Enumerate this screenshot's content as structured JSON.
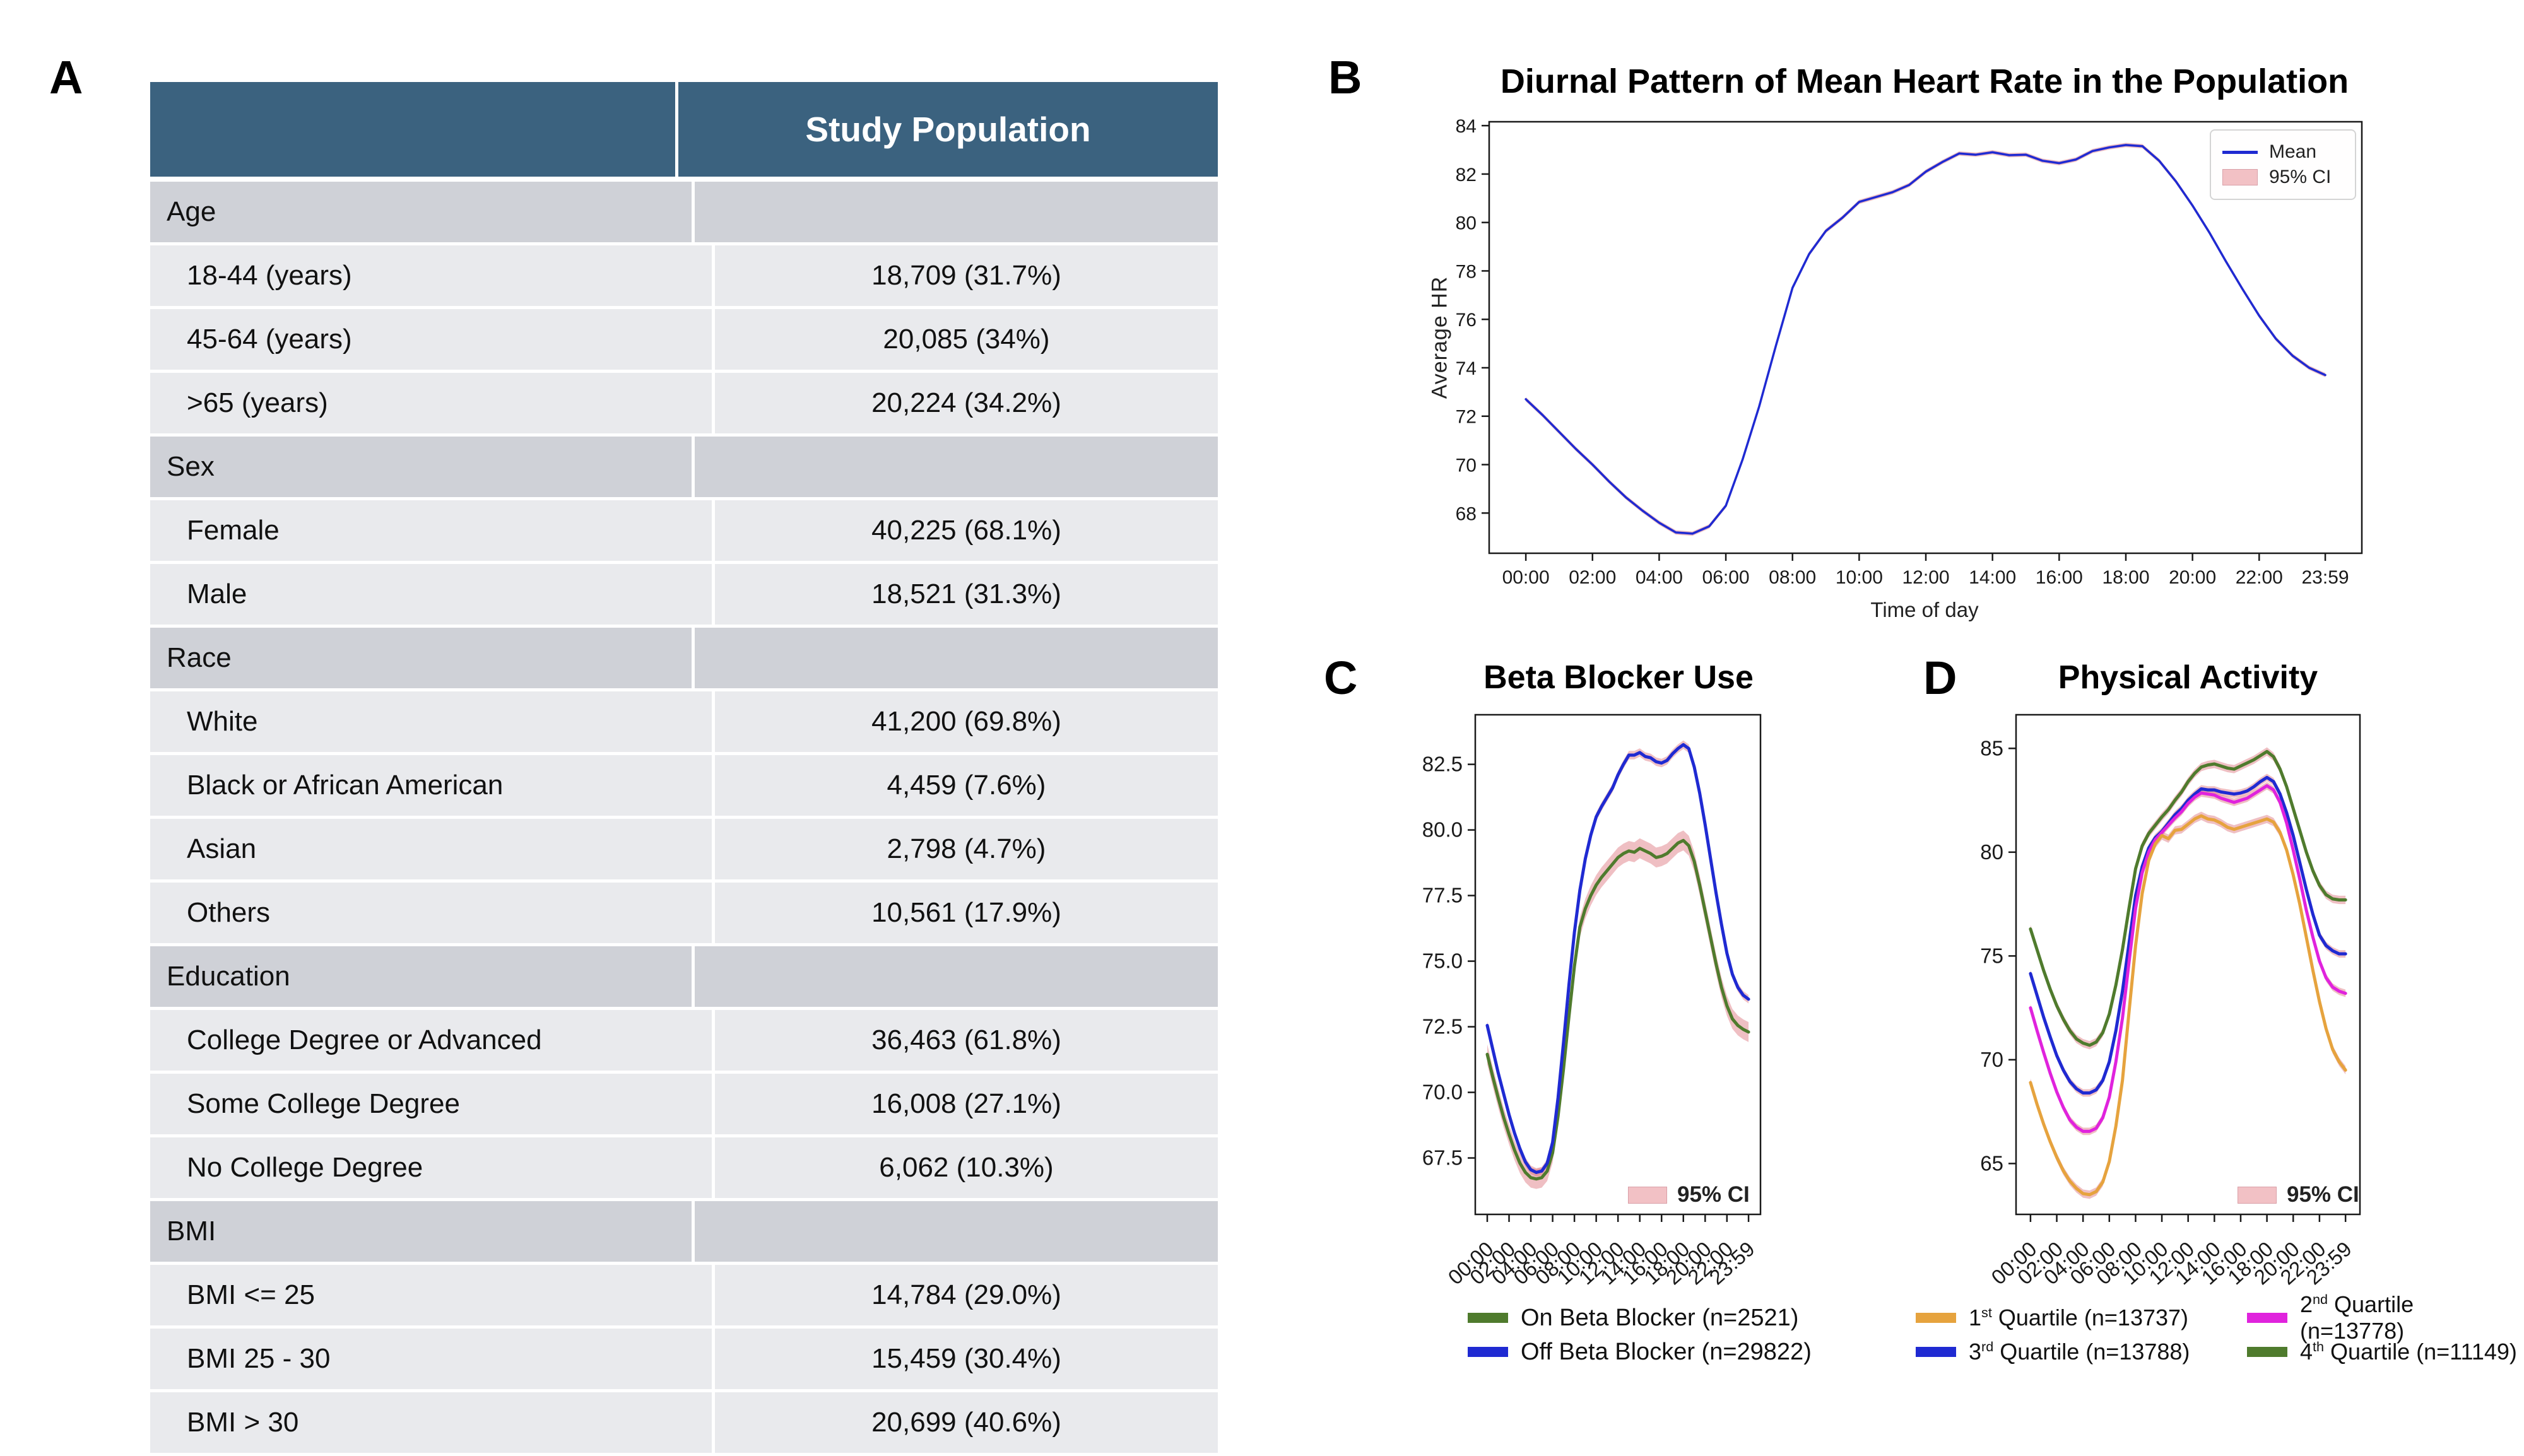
{
  "panels": {
    "a": {
      "label": "A"
    },
    "b": {
      "label": "B"
    },
    "c": {
      "label": "C"
    },
    "d": {
      "label": "D"
    }
  },
  "table": {
    "header": {
      "col1": "",
      "col2": "Study Population"
    },
    "rows": [
      {
        "type": "section",
        "label": "Age",
        "value": ""
      },
      {
        "type": "data",
        "label": "18-44 (years)",
        "value": "18,709 (31.7%)"
      },
      {
        "type": "data",
        "label": "45-64 (years)",
        "value": "20,085 (34%)"
      },
      {
        "type": "data",
        "label": ">65 (years)",
        "value": "20,224 (34.2%)"
      },
      {
        "type": "section",
        "label": "Sex",
        "value": ""
      },
      {
        "type": "data",
        "label": "Female",
        "value": "40,225 (68.1%)"
      },
      {
        "type": "data",
        "label": "Male",
        "value": "18,521 (31.3%)"
      },
      {
        "type": "section",
        "label": "Race",
        "value": ""
      },
      {
        "type": "data",
        "label": "White",
        "value": "41,200 (69.8%)"
      },
      {
        "type": "data",
        "label": "Black or African American",
        "value": "4,459 (7.6%)"
      },
      {
        "type": "data",
        "label": "Asian",
        "value": "2,798 (4.7%)"
      },
      {
        "type": "data",
        "label": "Others",
        "value": "10,561 (17.9%)"
      },
      {
        "type": "section",
        "label": "Education",
        "value": ""
      },
      {
        "type": "data",
        "label": "College Degree or Advanced",
        "value": "36,463 (61.8%)"
      },
      {
        "type": "data",
        "label": "Some College Degree",
        "value": "16,008 (27.1%)"
      },
      {
        "type": "data",
        "label": "No College Degree",
        "value": "6,062 (10.3%)"
      },
      {
        "type": "section",
        "label": "BMI",
        "value": ""
      },
      {
        "type": "data",
        "label": "BMI <= 25",
        "value": "14,784 (29.0%)"
      },
      {
        "type": "data",
        "label": "BMI 25 - 30",
        "value": "15,459 (30.4%)"
      },
      {
        "type": "data",
        "label": "BMI > 30",
        "value": "20,699 (40.6%)"
      }
    ]
  },
  "chart_data": [
    {
      "panel": "b",
      "type": "line",
      "title": "Diurnal Pattern of Mean Heart Rate in the Population",
      "xlabel": "Time of day",
      "ylabel": "Average HR",
      "xlim": [
        -1.1,
        25.08
      ],
      "ylim": [
        66.34,
        84.16
      ],
      "grid": false,
      "legend_position": "upper right",
      "ci_label": "95% CI",
      "ci_color": "rgba(219,112,122,0.45)",
      "yticks": [
        {
          "v": 68,
          "label": "68"
        },
        {
          "v": 70,
          "label": "70"
        },
        {
          "v": 72,
          "label": "72"
        },
        {
          "v": 74,
          "label": "74"
        },
        {
          "v": 76,
          "label": "76"
        },
        {
          "v": 78,
          "label": "78"
        },
        {
          "v": 80,
          "label": "80"
        },
        {
          "v": 82,
          "label": "82"
        },
        {
          "v": 84,
          "label": "84"
        }
      ],
      "xticks": [
        {
          "v": 0,
          "label": "00:00"
        },
        {
          "v": 2,
          "label": "02:00"
        },
        {
          "v": 4,
          "label": "04:00"
        },
        {
          "v": 6,
          "label": "06:00"
        },
        {
          "v": 8,
          "label": "08:00"
        },
        {
          "v": 10,
          "label": "10:00"
        },
        {
          "v": 12,
          "label": "12:00"
        },
        {
          "v": 14,
          "label": "14:00"
        },
        {
          "v": 16,
          "label": "16:00"
        },
        {
          "v": 18,
          "label": "18:00"
        },
        {
          "v": 20,
          "label": "20:00"
        },
        {
          "v": 22,
          "label": "22:00"
        },
        {
          "v": 23.983,
          "label": "23:59"
        }
      ],
      "x": [
        0,
        0.5,
        1,
        1.5,
        2,
        2.5,
        3,
        3.5,
        4,
        4.5,
        5,
        5.5,
        6,
        6.5,
        7,
        7.5,
        8,
        8.5,
        9,
        9.5,
        10,
        10.5,
        11,
        11.5,
        12,
        12.5,
        13,
        13.5,
        14,
        14.5,
        15,
        15.5,
        16,
        16.5,
        17,
        17.5,
        18,
        18.5,
        19,
        19.5,
        20,
        20.5,
        21,
        21.5,
        22,
        22.5,
        23,
        23.5,
        23.983
      ],
      "series": [
        {
          "name": "Mean",
          "color": "#1f2ad2",
          "ci": 0.09,
          "values": [
            72.7,
            72.05,
            71.35,
            70.65,
            70.0,
            69.3,
            68.65,
            68.1,
            67.6,
            67.2,
            67.15,
            67.45,
            68.3,
            70.2,
            72.4,
            74.9,
            77.3,
            78.7,
            79.65,
            80.2,
            80.85,
            81.05,
            81.25,
            81.55,
            82.1,
            82.5,
            82.85,
            82.8,
            82.9,
            82.78,
            82.8,
            82.55,
            82.45,
            82.6,
            82.95,
            83.1,
            83.2,
            83.15,
            82.55,
            81.7,
            80.7,
            79.6,
            78.4,
            77.25,
            76.15,
            75.2,
            74.5,
            74.0,
            73.7
          ]
        }
      ]
    },
    {
      "panel": "c",
      "type": "line",
      "title": "Beta Blocker Use",
      "xlabel": "",
      "ylabel": "",
      "xlim": [
        -1.1,
        25.08
      ],
      "ylim": [
        65.35,
        84.39
      ],
      "grid": false,
      "legend_position": "lower right",
      "ci_label": "95% CI",
      "ci_color": "rgba(219,112,122,0.45)",
      "draw_order": [
        0,
        1
      ],
      "yticks": [
        {
          "v": 67.5,
          "label": "67.5"
        },
        {
          "v": 70.0,
          "label": "70.0"
        },
        {
          "v": 72.5,
          "label": "72.5"
        },
        {
          "v": 75.0,
          "label": "75.0"
        },
        {
          "v": 77.5,
          "label": "77.5"
        },
        {
          "v": 80.0,
          "label": "80.0"
        },
        {
          "v": 82.5,
          "label": "82.5"
        }
      ],
      "xticks": [
        {
          "v": 0,
          "label": "00:00"
        },
        {
          "v": 2,
          "label": "02:00"
        },
        {
          "v": 4,
          "label": "04:00"
        },
        {
          "v": 6,
          "label": "06:00"
        },
        {
          "v": 8,
          "label": "08:00"
        },
        {
          "v": 10,
          "label": "10:00"
        },
        {
          "v": 12,
          "label": "12:00"
        },
        {
          "v": 14,
          "label": "14:00"
        },
        {
          "v": 16,
          "label": "16:00"
        },
        {
          "v": 18,
          "label": "18:00"
        },
        {
          "v": 20,
          "label": "20:00"
        },
        {
          "v": 22,
          "label": "22:00"
        },
        {
          "v": 23.983,
          "label": "23:59"
        }
      ],
      "x": [
        0,
        0.5,
        1,
        1.5,
        2,
        2.5,
        3,
        3.5,
        4,
        4.5,
        5,
        5.5,
        6,
        6.5,
        7,
        7.5,
        8,
        8.5,
        9,
        9.5,
        10,
        10.5,
        11,
        11.5,
        12,
        12.5,
        13,
        13.5,
        14,
        14.5,
        15,
        15.5,
        16,
        16.5,
        17,
        17.5,
        18,
        18.5,
        19,
        19.5,
        20,
        20.5,
        21,
        21.5,
        22,
        22.5,
        23,
        23.5,
        23.983
      ],
      "series": [
        {
          "name": "On Beta Blocker (n=2521)",
          "color": "#4f7b2d",
          "ci": 0.38,
          "values": [
            71.45,
            70.6,
            69.8,
            69.05,
            68.4,
            67.8,
            67.3,
            66.95,
            66.75,
            66.7,
            66.75,
            67.0,
            67.7,
            69.1,
            70.9,
            72.9,
            74.8,
            76.3,
            77.0,
            77.5,
            77.9,
            78.2,
            78.45,
            78.7,
            78.95,
            79.1,
            79.2,
            79.15,
            79.3,
            79.2,
            79.1,
            78.95,
            79.0,
            79.1,
            79.3,
            79.5,
            79.6,
            79.4,
            78.8,
            77.9,
            76.9,
            75.9,
            74.9,
            74.0,
            73.3,
            72.8,
            72.55,
            72.4,
            72.3
          ]
        },
        {
          "name": "Off Beta Blocker (n=29822)",
          "color": "#1f2ad2",
          "ci": 0.16,
          "values": [
            72.55,
            71.65,
            70.75,
            69.95,
            69.15,
            68.45,
            67.85,
            67.35,
            67.05,
            66.95,
            67.0,
            67.3,
            68.1,
            69.8,
            71.9,
            74.1,
            76.1,
            77.7,
            78.9,
            79.8,
            80.5,
            80.9,
            81.25,
            81.6,
            82.1,
            82.5,
            82.85,
            82.85,
            82.95,
            82.8,
            82.75,
            82.6,
            82.55,
            82.65,
            82.9,
            83.1,
            83.25,
            83.1,
            82.4,
            81.4,
            80.2,
            78.9,
            77.6,
            76.4,
            75.3,
            74.5,
            74.0,
            73.7,
            73.55
          ]
        }
      ]
    },
    {
      "panel": "d",
      "type": "line",
      "title": "Physical Activity",
      "xlabel": "",
      "ylabel": "",
      "xlim": [
        -1.1,
        25.08
      ],
      "ylim": [
        62.55,
        86.62
      ],
      "grid": false,
      "legend_position": "lower right",
      "ci_label": "95% CI",
      "ci_color": "rgba(219,112,122,0.45)",
      "draw_order": [
        2,
        1,
        0,
        3
      ],
      "yticks": [
        {
          "v": 65,
          "label": "65"
        },
        {
          "v": 70,
          "label": "70"
        },
        {
          "v": 75,
          "label": "75"
        },
        {
          "v": 80,
          "label": "80"
        },
        {
          "v": 85,
          "label": "85"
        }
      ],
      "xticks": [
        {
          "v": 0,
          "label": "00:00"
        },
        {
          "v": 2,
          "label": "02:00"
        },
        {
          "v": 4,
          "label": "04:00"
        },
        {
          "v": 6,
          "label": "06:00"
        },
        {
          "v": 8,
          "label": "08:00"
        },
        {
          "v": 10,
          "label": "10:00"
        },
        {
          "v": 12,
          "label": "12:00"
        },
        {
          "v": 14,
          "label": "14:00"
        },
        {
          "v": 16,
          "label": "16:00"
        },
        {
          "v": 18,
          "label": "18:00"
        },
        {
          "v": 20,
          "label": "20:00"
        },
        {
          "v": 22,
          "label": "22:00"
        },
        {
          "v": 23.983,
          "label": "23:59"
        }
      ],
      "x": [
        0,
        0.5,
        1,
        1.5,
        2,
        2.5,
        3,
        3.5,
        4,
        4.5,
        5,
        5.5,
        6,
        6.5,
        7,
        7.5,
        8,
        8.5,
        9,
        9.5,
        10,
        10.5,
        11,
        11.5,
        12,
        12.5,
        13,
        13.5,
        14,
        14.5,
        15,
        15.5,
        16,
        16.5,
        17,
        17.5,
        18,
        18.5,
        19,
        19.5,
        20,
        20.5,
        21,
        21.5,
        22,
        22.5,
        23,
        23.5,
        23.983
      ],
      "series": [
        {
          "name": "1st Quartile (n=13737)",
          "sup_split": [
            "1",
            "st",
            " Quartile (n=13737)"
          ],
          "color": "#e6a33e",
          "ci": 0.2,
          "values": [
            68.9,
            67.85,
            66.9,
            66.05,
            65.3,
            64.65,
            64.15,
            63.8,
            63.55,
            63.5,
            63.65,
            64.1,
            65.1,
            66.8,
            69.0,
            72.3,
            75.5,
            78.0,
            79.6,
            80.4,
            80.8,
            80.65,
            81.05,
            81.1,
            81.35,
            81.6,
            81.75,
            81.6,
            81.55,
            81.4,
            81.2,
            81.1,
            81.2,
            81.3,
            81.4,
            81.5,
            81.6,
            81.45,
            80.95,
            80.1,
            78.9,
            77.5,
            75.9,
            74.3,
            72.8,
            71.5,
            70.5,
            69.9,
            69.5
          ]
        },
        {
          "name": "2nd Quartile (n=13778)",
          "sup_split": [
            "2",
            "nd",
            " Quartile (n=13778)"
          ],
          "color": "#e023dd",
          "ci": 0.18,
          "values": [
            72.5,
            71.4,
            70.35,
            69.35,
            68.45,
            67.7,
            67.1,
            66.75,
            66.55,
            66.55,
            66.7,
            67.2,
            68.2,
            69.9,
            72.0,
            74.7,
            77.3,
            79.0,
            80.0,
            80.6,
            80.95,
            81.3,
            81.65,
            81.95,
            82.35,
            82.65,
            82.85,
            82.8,
            82.75,
            82.6,
            82.5,
            82.4,
            82.5,
            82.6,
            82.8,
            83.0,
            83.2,
            83.0,
            82.4,
            81.4,
            80.1,
            78.7,
            77.2,
            75.9,
            74.75,
            73.95,
            73.5,
            73.3,
            73.2
          ]
        },
        {
          "name": "3rd Quartile (n=13788)",
          "sup_split": [
            "3",
            "rd",
            " Quartile (n=13788)"
          ],
          "color": "#1f2ad2",
          "ci": 0.18,
          "values": [
            74.15,
            73.1,
            72.05,
            71.1,
            70.2,
            69.5,
            68.95,
            68.6,
            68.4,
            68.4,
            68.55,
            69.0,
            69.9,
            71.4,
            73.3,
            75.6,
            77.9,
            79.3,
            80.2,
            80.7,
            81.0,
            81.4,
            81.8,
            82.1,
            82.5,
            82.8,
            83.05,
            83.0,
            83.0,
            82.9,
            82.85,
            82.8,
            82.85,
            82.95,
            83.15,
            83.4,
            83.6,
            83.4,
            82.8,
            81.9,
            80.8,
            79.5,
            78.2,
            77.0,
            76.0,
            75.5,
            75.25,
            75.1,
            75.1
          ]
        },
        {
          "name": "4th Quartile (n=11149)",
          "sup_split": [
            "4",
            "th",
            " Quartile (n=11149)"
          ],
          "color": "#4f7b2d",
          "ci": 0.2,
          "values": [
            76.3,
            75.3,
            74.3,
            73.4,
            72.6,
            71.95,
            71.4,
            71.0,
            70.8,
            70.7,
            70.85,
            71.3,
            72.2,
            73.6,
            75.3,
            77.3,
            79.2,
            80.3,
            80.9,
            81.3,
            81.7,
            82.05,
            82.5,
            82.9,
            83.4,
            83.8,
            84.1,
            84.2,
            84.25,
            84.15,
            84.05,
            84.0,
            84.15,
            84.3,
            84.45,
            84.65,
            84.85,
            84.6,
            84.0,
            83.15,
            82.1,
            81.05,
            80.0,
            79.1,
            78.4,
            77.95,
            77.75,
            77.7,
            77.7
          ]
        }
      ]
    }
  ]
}
